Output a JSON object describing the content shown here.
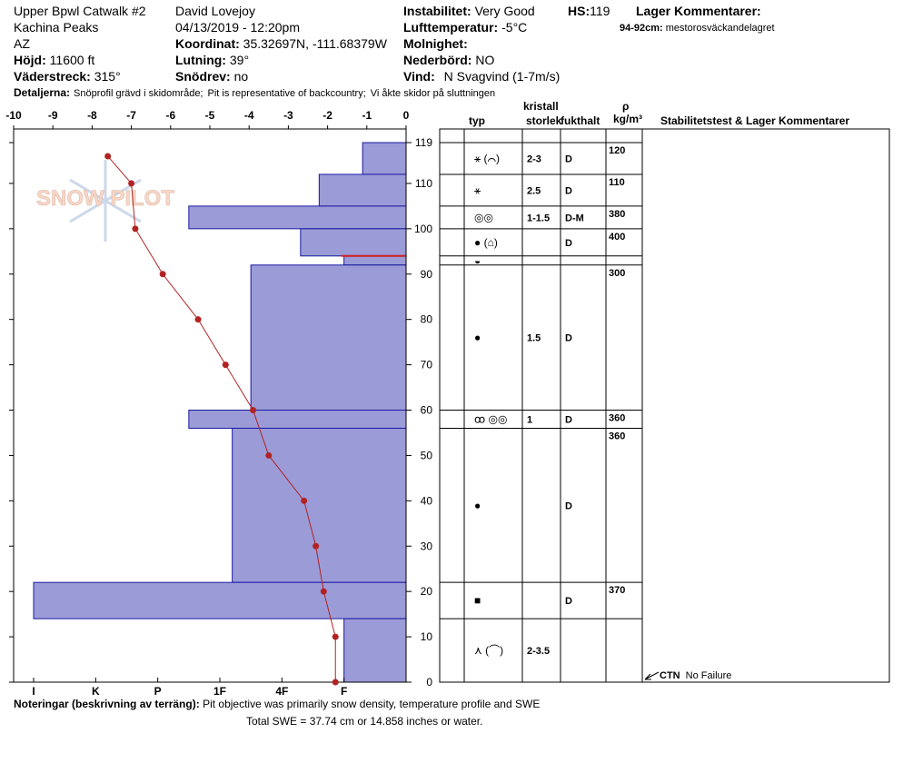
{
  "header": {
    "col1": [
      "Upper Bpwl Catwalk #2",
      "Kachina Peaks",
      "AZ"
    ],
    "elevation": {
      "label": "Höjd:",
      "value": "11600 ft"
    },
    "aspect": {
      "label": "Väderstreck:",
      "value": "315°"
    },
    "col2": [
      "David Lovejoy",
      "04/13/2019 - 12:20pm"
    ],
    "coordinates": {
      "label": "Koordinat:",
      "value": "35.32697N, -111.68379W"
    },
    "slope": {
      "label": "Lutning:",
      "value": "39°"
    },
    "wind_loading": {
      "label": "Snödrev:",
      "value": "no"
    },
    "stability": {
      "label": "Instabilitet:",
      "value": "Very Good"
    },
    "air_temp": {
      "label": "Lufttemperatur:",
      "value": "-5°C"
    },
    "sky": {
      "label": "Molnighet:"
    },
    "precip": {
      "label": "Nederbörd:",
      "value": "NO"
    },
    "wind": {
      "label": "Vind:",
      "value": "N Svagvind (1-7m/s)"
    },
    "hs": {
      "label": "HS:",
      "value": "119"
    },
    "layer_comments_title": "Lager Kommentarer:",
    "layer_comment": {
      "label": "94-92cm:",
      "value": "mestorosväckandelagret"
    },
    "details": {
      "label": "Detaljerna:",
      "items": [
        "Snöprofil grävd i skidområde;",
        "Pit is representative of backcountry;",
        "Vi åkte skidor på sluttningen"
      ]
    },
    "logo": "SNOW PILOT"
  },
  "chart_data": {
    "type": "snow-profile",
    "ylim": [
      0,
      119
    ],
    "yticks": [
      0,
      10,
      20,
      30,
      40,
      50,
      60,
      70,
      80,
      90,
      100,
      110,
      119
    ],
    "xlim": [
      -10,
      0
    ],
    "xticks": [
      -10,
      -9,
      -8,
      -7,
      -6,
      -5,
      -4,
      -3,
      -2,
      -1,
      0
    ],
    "hardness_lim": [
      0,
      6
    ],
    "hardness_ticks": [
      {
        "value": 6,
        "label": "I"
      },
      {
        "value": 5,
        "label": "K"
      },
      {
        "value": 4,
        "label": "P"
      },
      {
        "value": 3,
        "label": "1F"
      },
      {
        "value": 2,
        "label": "4F"
      },
      {
        "value": 1,
        "label": "F"
      }
    ],
    "layers": {
      "color": "#9b9bd8",
      "top": [
        119,
        112,
        105,
        100,
        94,
        92,
        60,
        56,
        22,
        14
      ],
      "bottom": [
        112,
        105,
        100,
        94,
        92,
        60,
        56,
        22,
        14,
        0
      ],
      "hardness": [
        0.7,
        1.4,
        3.5,
        1.7,
        1.0,
        2.5,
        3.5,
        2.8,
        6.0,
        1.0
      ]
    },
    "temperature": {
      "color": "#b22222",
      "depth": [
        116,
        110,
        100,
        90,
        80,
        70,
        60,
        50,
        40,
        30,
        20,
        10,
        0
      ],
      "values": [
        -7.6,
        -7.0,
        -6.9,
        -6.2,
        -5.3,
        -4.6,
        -3.9,
        -3.5,
        -2.6,
        -2.3,
        -2.1,
        -1.8,
        -1.8
      ]
    }
  },
  "layer_table": {
    "header_crystal": "kristall",
    "columns": [
      "typ",
      "storlek",
      "fukthalt",
      "ρ",
      "kg/m³",
      "Stabilitetstest & Lager Kommentarer"
    ],
    "rows": [
      [
        "⚹ (⌒)",
        "2-3",
        "D",
        120
      ],
      [
        "⚹",
        "2.5",
        "D",
        110
      ],
      [
        "◎◎",
        "1-1.5",
        "D-M",
        380
      ],
      [
        "● (⌂)",
        null,
        "D",
        400
      ],
      [
        "◒",
        null,
        null,
        null
      ],
      [
        "●",
        "1.5",
        "D",
        300
      ],
      [
        "ꝏ ◎◎",
        "1",
        "D",
        360
      ],
      [
        "●",
        null,
        "D",
        360
      ],
      [
        "■",
        null,
        "D",
        370
      ],
      [
        "⋏ (⌒)",
        "2-3.5",
        null,
        null
      ]
    ],
    "test": {
      "code": "CTN",
      "result": "No Failure"
    }
  },
  "notes": {
    "label": "Noteringar (beskrivning av terräng):",
    "text": "Pit objective was primarily snow density, temperature profile and SWE",
    "swe": "Total SWE = 37.74 cm or 14.858 inches or water."
  }
}
